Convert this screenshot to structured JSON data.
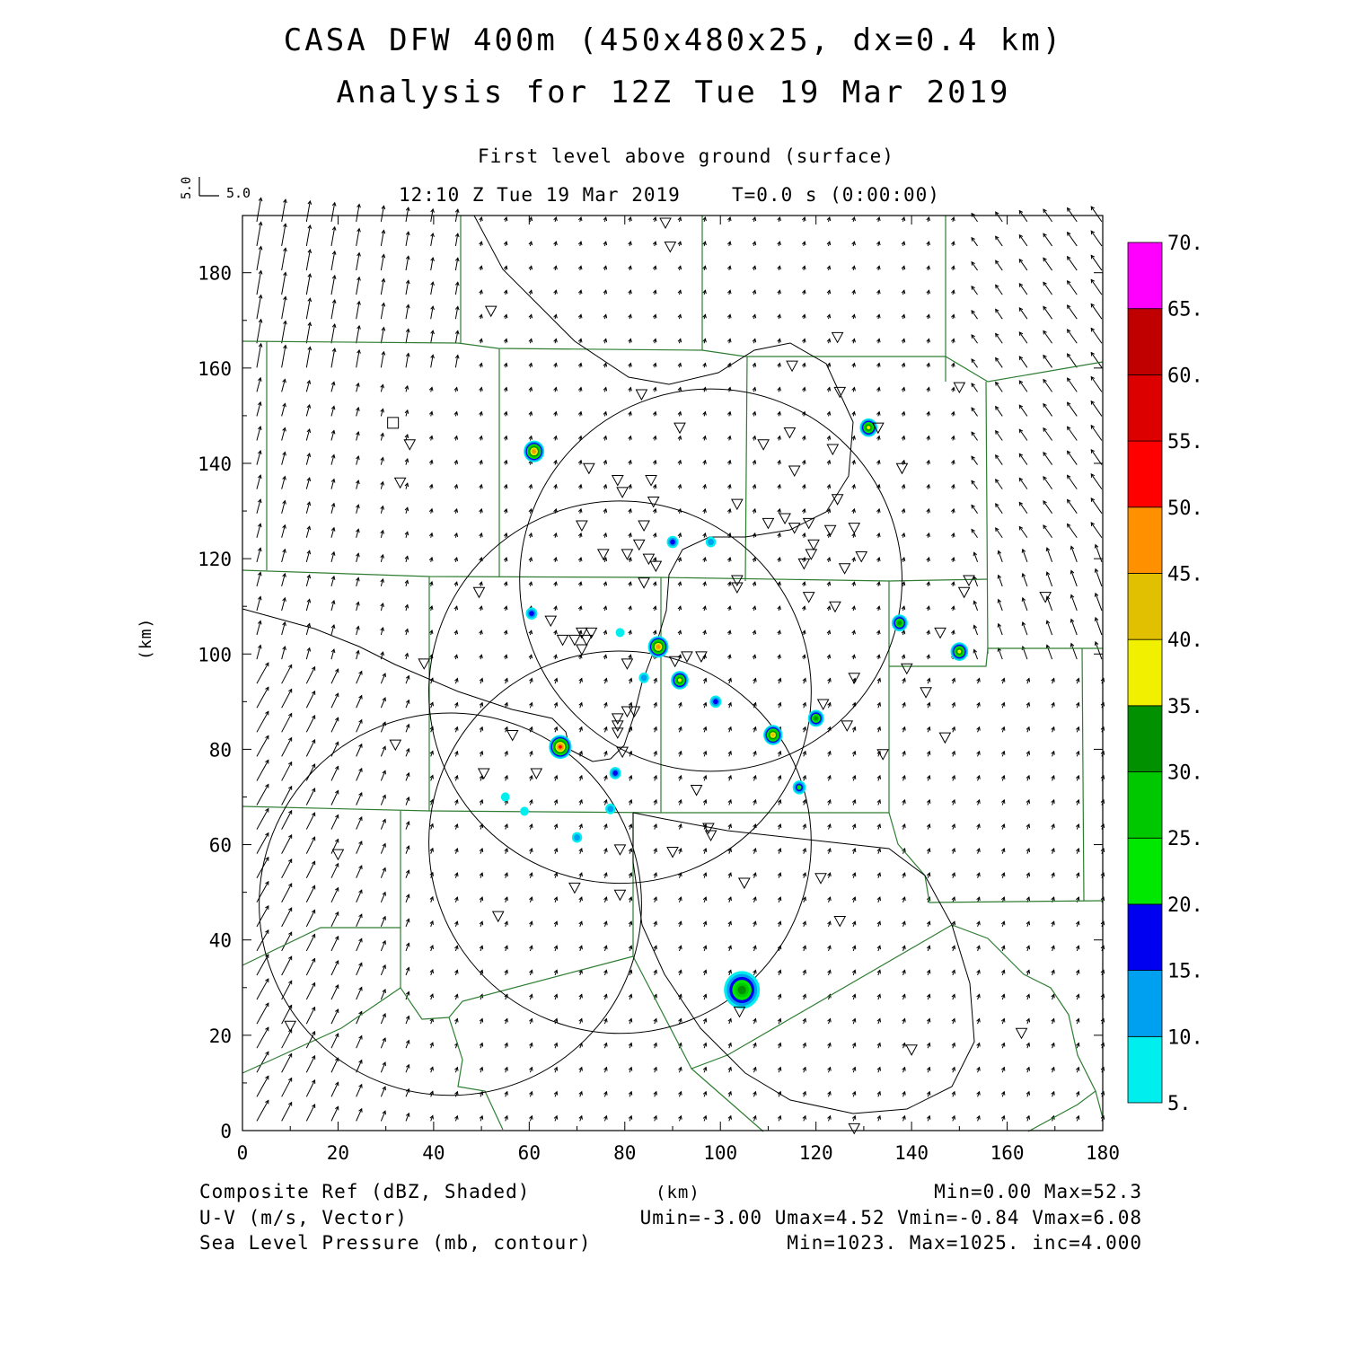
{
  "header": {
    "title_line1": "CASA DFW 400m (450x480x25, dx=0.4 km)",
    "title_line2": "Analysis for 12Z Tue 19 Mar 2019",
    "level": "First level above ground (surface)",
    "valid_time": "12:10 Z Tue 19 Mar 2019",
    "forecast_time": "T=0.0 s (0:00:00)",
    "vector_ref_x": "5.0",
    "vector_ref_y": "5.0"
  },
  "footer": {
    "field1": "Composite Ref (dBZ, Shaded)",
    "field2": "U-V (m/s, Vector)",
    "field3": "Sea Level Pressure (mb, contour)",
    "xunit": "(km)",
    "stats1": "Min=0.00 Max=52.3",
    "stats2": "Umin=-3.00 Umax=4.52 Vmin=-0.84 Vmax=6.08",
    "stats3": "Min=1023. Max=1025. inc=4.000"
  },
  "colors": {
    "contour": "#000000",
    "county_lines": "#2e7d32",
    "background": "#ffffff"
  },
  "chart_data": {
    "type": "heatmap",
    "xlabel": "",
    "ylabel": "(km)",
    "xlim": [
      0,
      180
    ],
    "ylim": [
      0,
      192
    ],
    "xticks": [
      "0",
      "20",
      "40",
      "60",
      "80",
      "100",
      "120",
      "140",
      "160",
      "180"
    ],
    "yticks": [
      "0",
      "20",
      "40",
      "60",
      "80",
      "100",
      "120",
      "140",
      "160",
      "180"
    ],
    "colorbar": {
      "labels": [
        "5.",
        "10.",
        "15.",
        "20.",
        "25.",
        "30.",
        "35.",
        "40.",
        "45.",
        "50.",
        "55.",
        "60.",
        "65.",
        "70."
      ],
      "colors": [
        "#00eeee",
        "#00a0f0",
        "#0000f0",
        "#00e800",
        "#00c800",
        "#009000",
        "#f0f000",
        "#e0c000",
        "#ff9000",
        "#ff0000",
        "#dd0000",
        "#c00000",
        "#ff00ff"
      ]
    },
    "reflectivity_cells": [
      {
        "x": 61,
        "y": 142.5,
        "dbz": 45
      },
      {
        "x": 131,
        "y": 147.5,
        "dbz": 35
      },
      {
        "x": 66.5,
        "y": 80.5,
        "dbz": 52
      },
      {
        "x": 87,
        "y": 101.5,
        "dbz": 45
      },
      {
        "x": 104.5,
        "y": 29.5,
        "dbz": 30
      },
      {
        "x": 150,
        "y": 100.5,
        "dbz": 35
      },
      {
        "x": 137.5,
        "y": 106.5,
        "dbz": 30
      },
      {
        "x": 111,
        "y": 83,
        "dbz": 40
      },
      {
        "x": 120,
        "y": 86.5,
        "dbz": 30
      },
      {
        "x": 116.5,
        "y": 72,
        "dbz": 20
      },
      {
        "x": 91.5,
        "y": 94.5,
        "dbz": 35
      },
      {
        "x": 60.5,
        "y": 108.5,
        "dbz": 15
      },
      {
        "x": 90,
        "y": 123.5,
        "dbz": 15
      },
      {
        "x": 98,
        "y": 123.5,
        "dbz": 10
      },
      {
        "x": 84,
        "y": 95,
        "dbz": 10
      },
      {
        "x": 99,
        "y": 90,
        "dbz": 15
      },
      {
        "x": 78,
        "y": 75,
        "dbz": 15
      },
      {
        "x": 77,
        "y": 67.5,
        "dbz": 10
      },
      {
        "x": 70,
        "y": 61.5,
        "dbz": 10
      },
      {
        "x": 79,
        "y": 104.5,
        "dbz": 5
      },
      {
        "x": 55,
        "y": 70,
        "dbz": 5
      },
      {
        "x": 59,
        "y": 67,
        "dbz": 5
      }
    ],
    "station_markers": [
      [
        88.5,
        190.5
      ],
      [
        89.5,
        185.5
      ],
      [
        52,
        172
      ],
      [
        124.5,
        166.5
      ],
      [
        115,
        160.5
      ],
      [
        125,
        155
      ],
      [
        83.5,
        154.5
      ],
      [
        150,
        156
      ],
      [
        91.5,
        147.5
      ],
      [
        133,
        147.5
      ],
      [
        114.5,
        146.5
      ],
      [
        35,
        144
      ],
      [
        109,
        144
      ],
      [
        123.5,
        143
      ],
      [
        33,
        136
      ],
      [
        72.5,
        139
      ],
      [
        138,
        139
      ],
      [
        115.5,
        138.5
      ],
      [
        78.5,
        136.5
      ],
      [
        85.5,
        136.5
      ],
      [
        79.5,
        134
      ],
      [
        86,
        132
      ],
      [
        103.5,
        131.5
      ],
      [
        124.5,
        132.5
      ],
      [
        113.5,
        128.5
      ],
      [
        110,
        127.5
      ],
      [
        115.5,
        126.5
      ],
      [
        118.5,
        127.5
      ],
      [
        123,
        126
      ],
      [
        128,
        126.5
      ],
      [
        71,
        127
      ],
      [
        84,
        127
      ],
      [
        83,
        123
      ],
      [
        119.5,
        123
      ],
      [
        75.5,
        121
      ],
      [
        80.5,
        121
      ],
      [
        119,
        121
      ],
      [
        129.5,
        120.5
      ],
      [
        85,
        120
      ],
      [
        86.5,
        118.5
      ],
      [
        117.5,
        119
      ],
      [
        126,
        118
      ],
      [
        84,
        115
      ],
      [
        103.5,
        115.5
      ],
      [
        152,
        115.5
      ],
      [
        49.5,
        113
      ],
      [
        103.5,
        114
      ],
      [
        151,
        113
      ],
      [
        168,
        112
      ],
      [
        118.5,
        112
      ],
      [
        124,
        110
      ],
      [
        64.5,
        107
      ],
      [
        146,
        104.5
      ],
      [
        71,
        104.5
      ],
      [
        73,
        104.5
      ],
      [
        72,
        103
      ],
      [
        69.5,
        103
      ],
      [
        67,
        103
      ],
      [
        71,
        101
      ],
      [
        38,
        98
      ],
      [
        96,
        99.5
      ],
      [
        93,
        99.5
      ],
      [
        90.5,
        98.5
      ],
      [
        80.5,
        98
      ],
      [
        139,
        97
      ],
      [
        128,
        95
      ],
      [
        143,
        92
      ],
      [
        121.5,
        89.5
      ],
      [
        80.5,
        88
      ],
      [
        82,
        88
      ],
      [
        78.5,
        86.5
      ],
      [
        78.5,
        85
      ],
      [
        126.5,
        85
      ],
      [
        78.5,
        83.5
      ],
      [
        147,
        82.5
      ],
      [
        32,
        81
      ],
      [
        56.5,
        83
      ],
      [
        134,
        79
      ],
      [
        79.5,
        79.5
      ],
      [
        50.5,
        75
      ],
      [
        61.5,
        75
      ],
      [
        95,
        71.5
      ],
      [
        97.5,
        63.5
      ],
      [
        98,
        62
      ],
      [
        79,
        59
      ],
      [
        90,
        58.5
      ],
      [
        20,
        58
      ],
      [
        121,
        53
      ],
      [
        105,
        52
      ],
      [
        69.5,
        51
      ],
      [
        79,
        49.5
      ],
      [
        53.5,
        45
      ],
      [
        125,
        44
      ],
      [
        104,
        25
      ],
      [
        10,
        22
      ],
      [
        163,
        20.5
      ],
      [
        140,
        17
      ],
      [
        128,
        0.5
      ]
    ],
    "radar_markers": [
      [
        31.5,
        148.5
      ]
    ],
    "circles_center_radius_km": [
      [
        43.5,
        47.5,
        40
      ],
      [
        79,
        60.5,
        40
      ],
      [
        79,
        92,
        40
      ],
      [
        98,
        115.5,
        40
      ]
    ]
  }
}
